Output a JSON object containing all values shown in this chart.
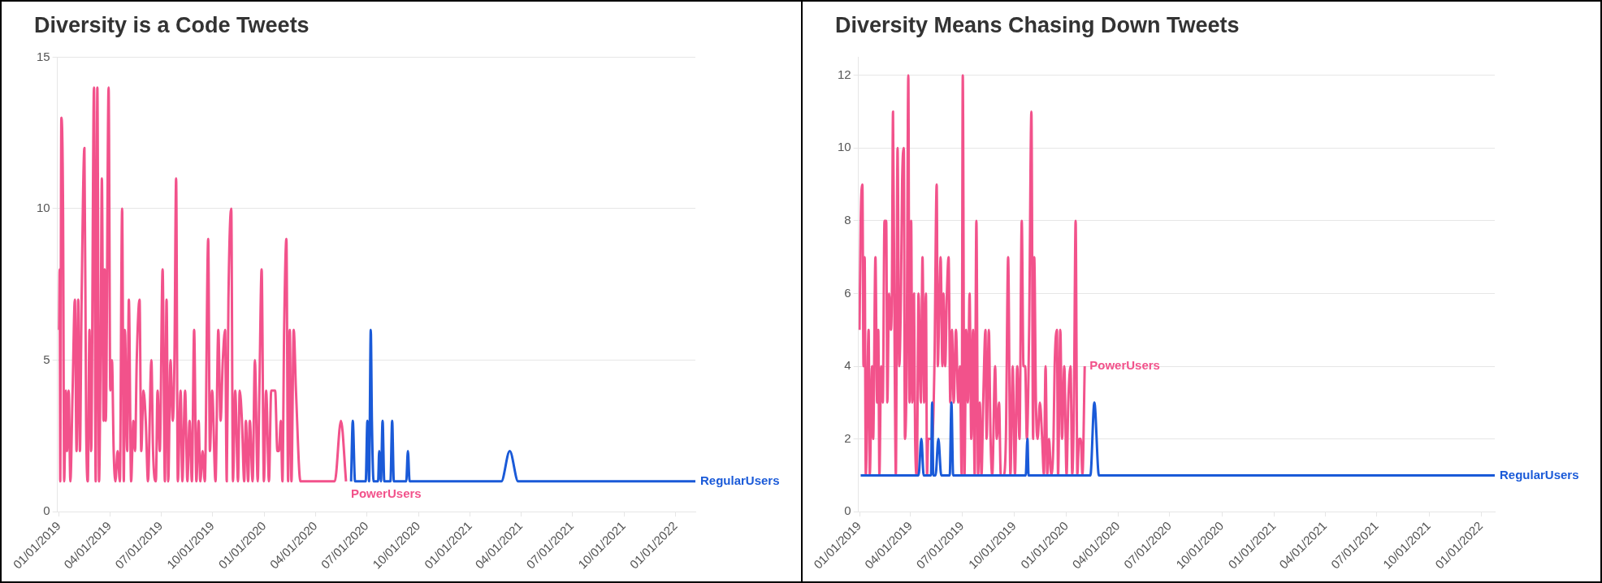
{
  "chart_data": [
    {
      "type": "line",
      "title": "Diversity is a Code Tweets",
      "legend": false,
      "grid": "y",
      "xlim": [
        "2018-12-29",
        "2022-02-05"
      ],
      "ylim": [
        0,
        15
      ],
      "yticks": [
        0,
        5,
        10,
        15
      ],
      "xticks": [
        {
          "value": "2019-01-01",
          "label": "01/01/2019"
        },
        {
          "value": "2019-04-01",
          "label": "04/01/2019"
        },
        {
          "value": "2019-07-01",
          "label": "07/01/2019"
        },
        {
          "value": "2019-10-01",
          "label": "10/01/2019"
        },
        {
          "value": "2020-01-01",
          "label": "01/01/2020"
        },
        {
          "value": "2020-04-01",
          "label": "04/01/2020"
        },
        {
          "value": "2020-07-01",
          "label": "07/01/2020"
        },
        {
          "value": "2020-10-01",
          "label": "10/01/2020"
        },
        {
          "value": "2021-01-01",
          "label": "01/01/2021"
        },
        {
          "value": "2021-04-01",
          "label": "04/01/2021"
        },
        {
          "value": "2021-07-01",
          "label": "07/01/2021"
        },
        {
          "value": "2021-10-01",
          "label": "10/01/2021"
        },
        {
          "value": "2022-01-01",
          "label": "01/01/2022"
        }
      ],
      "series": [
        {
          "name": "PowerUsers",
          "color": "#f2528b",
          "x": [
            "2019-01-01",
            "2019-01-02",
            "2019-01-03",
            "2019-01-05",
            "2019-01-08",
            "2019-01-10",
            "2019-01-13",
            "2019-01-15",
            "2019-01-18",
            "2019-01-21",
            "2019-01-25",
            "2019-01-29",
            "2019-02-01",
            "2019-02-04",
            "2019-02-07",
            "2019-02-10",
            "2019-02-15",
            "2019-02-18",
            "2019-02-21",
            "2019-02-24",
            "2019-02-27",
            "2019-03-04",
            "2019-03-07",
            "2019-03-10",
            "2019-03-13",
            "2019-03-16",
            "2019-03-18",
            "2019-03-21",
            "2019-03-23",
            "2019-03-25",
            "2019-03-30",
            "2019-04-02",
            "2019-04-05",
            "2019-04-08",
            "2019-04-11",
            "2019-04-15",
            "2019-04-19",
            "2019-04-23",
            "2019-04-26",
            "2019-04-28",
            "2019-05-02",
            "2019-05-05",
            "2019-05-09",
            "2019-05-13",
            "2019-05-16",
            "2019-05-19",
            "2019-05-24",
            "2019-05-27",
            "2019-05-31",
            "2019-06-04",
            "2019-06-08",
            "2019-06-14",
            "2019-06-17",
            "2019-06-22",
            "2019-06-25",
            "2019-06-29",
            "2019-07-04",
            "2019-07-08",
            "2019-07-11",
            "2019-07-14",
            "2019-07-18",
            "2019-07-22",
            "2019-07-25",
            "2019-07-28",
            "2019-07-31",
            "2019-08-05",
            "2019-08-08",
            "2019-08-13",
            "2019-08-17",
            "2019-08-21",
            "2019-08-25",
            "2019-08-29",
            "2019-09-02",
            "2019-09-06",
            "2019-09-09",
            "2019-09-13",
            "2019-09-17",
            "2019-09-23",
            "2019-09-26",
            "2019-09-30",
            "2019-10-06",
            "2019-10-11",
            "2019-10-15",
            "2019-10-19",
            "2019-10-23",
            "2019-10-26",
            "2019-10-29",
            "2019-11-03",
            "2019-11-06",
            "2019-11-10",
            "2019-11-15",
            "2019-11-18",
            "2019-11-22",
            "2019-11-26",
            "2019-11-29",
            "2019-12-03",
            "2019-12-06",
            "2019-12-11",
            "2019-12-15",
            "2019-12-20",
            "2019-12-23",
            "2019-12-27",
            "2019-12-31",
            "2020-01-04",
            "2020-01-09",
            "2020-01-13",
            "2020-01-20",
            "2020-01-24",
            "2020-01-27",
            "2020-01-30",
            "2020-02-02",
            "2020-02-05",
            "2020-02-09",
            "2020-02-12",
            "2020-02-15",
            "2020-02-18",
            "2020-02-22",
            "2020-02-26",
            "2020-03-05",
            "2020-05-05",
            "2020-05-16",
            "2020-05-25"
          ],
          "values": [
            6,
            8,
            1,
            13,
            10,
            1,
            4,
            2,
            4,
            1,
            4,
            7,
            2,
            7,
            2,
            7,
            12,
            3,
            1,
            6,
            2,
            14,
            1,
            14,
            1,
            6,
            11,
            3,
            8,
            3,
            14,
            4,
            5,
            2,
            1,
            2,
            1,
            10,
            1,
            6,
            2,
            7,
            1,
            3,
            2,
            5,
            7,
            2,
            4,
            3,
            1,
            5,
            2,
            1,
            4,
            2,
            8,
            1,
            7,
            1,
            5,
            3,
            5,
            11,
            1,
            4,
            1,
            4,
            1,
            3,
            1,
            6,
            1,
            3,
            1,
            2,
            1,
            9,
            2,
            4,
            1,
            6,
            3,
            5,
            6,
            1,
            7,
            10,
            1,
            4,
            1,
            4,
            3,
            1,
            3,
            1,
            3,
            1,
            5,
            1,
            4,
            8,
            1,
            4,
            1,
            4,
            4,
            2,
            2,
            3,
            1,
            6,
            9,
            1,
            6,
            1,
            6,
            4,
            1,
            1,
            3,
            1
          ]
        },
        {
          "name": "RegularUsers",
          "color": "#1a5ad8",
          "x": [
            "2020-06-03",
            "2020-06-06",
            "2020-06-10",
            "2020-06-29",
            "2020-07-02",
            "2020-07-05",
            "2020-07-08",
            "2020-07-10",
            "2020-07-13",
            "2020-07-21",
            "2020-07-23",
            "2020-07-26",
            "2020-07-29",
            "2020-08-01",
            "2020-08-12",
            "2020-08-15",
            "2020-08-18",
            "2020-09-09",
            "2020-09-12",
            "2020-09-15",
            "2021-02-25",
            "2021-03-12",
            "2021-03-27",
            "2022-02-05"
          ],
          "values": [
            1,
            3,
            1,
            1,
            3,
            1,
            6,
            3,
            1,
            1,
            2,
            1,
            3,
            1,
            1,
            3,
            1,
            1,
            2,
            1,
            1,
            2,
            1,
            1
          ]
        }
      ]
    },
    {
      "type": "line",
      "title": "Diversity Means Chasing Down Tweets",
      "legend": false,
      "grid": "y",
      "xlim": [
        "2018-12-30",
        "2022-01-25"
      ],
      "ylim": [
        0,
        12.5
      ],
      "yticks": [
        0,
        2,
        4,
        6,
        8,
        10,
        12
      ],
      "xticks": [
        {
          "value": "2019-01-01",
          "label": "01/01/2019"
        },
        {
          "value": "2019-04-01",
          "label": "04/01/2019"
        },
        {
          "value": "2019-07-01",
          "label": "07/01/2019"
        },
        {
          "value": "2019-10-01",
          "label": "10/01/2019"
        },
        {
          "value": "2020-01-01",
          "label": "01/01/2020"
        },
        {
          "value": "2020-04-01",
          "label": "04/01/2020"
        },
        {
          "value": "2020-07-01",
          "label": "07/01/2020"
        },
        {
          "value": "2020-10-01",
          "label": "10/01/2020"
        },
        {
          "value": "2021-01-01",
          "label": "01/01/2021"
        },
        {
          "value": "2021-04-01",
          "label": "04/01/2021"
        },
        {
          "value": "2021-07-01",
          "label": "07/01/2021"
        },
        {
          "value": "2021-10-01",
          "label": "10/01/2021"
        },
        {
          "value": "2022-01-01",
          "label": "01/01/2022"
        }
      ],
      "series": [
        {
          "name": "RegularUsers",
          "color": "#1a5ad8",
          "x": [
            "2019-01-03",
            "2019-04-15",
            "2019-04-20",
            "2019-04-24",
            "2019-05-07",
            "2019-05-09",
            "2019-05-11",
            "2019-05-15",
            "2019-05-20",
            "2019-05-25",
            "2019-06-09",
            "2019-06-12",
            "2019-06-15",
            "2019-10-21",
            "2019-10-24",
            "2019-10-26",
            "2020-02-12",
            "2020-02-19",
            "2020-02-27",
            "2022-01-25"
          ],
          "values": [
            1,
            1,
            2,
            1,
            1,
            3,
            1,
            1,
            2,
            1,
            1,
            3,
            1,
            1,
            2,
            1,
            1,
            3,
            1,
            1
          ]
        },
        {
          "name": "PowerUsers",
          "color": "#f2528b",
          "x": [
            "2019-01-01",
            "2019-01-03",
            "2019-01-06",
            "2019-01-08",
            "2019-01-10",
            "2019-01-12",
            "2019-01-17",
            "2019-01-19",
            "2019-01-23",
            "2019-01-25",
            "2019-01-29",
            "2019-02-01",
            "2019-02-03",
            "2019-02-05",
            "2019-02-08",
            "2019-02-11",
            "2019-02-14",
            "2019-02-17",
            "2019-02-19",
            "2019-02-22",
            "2019-02-25",
            "2019-02-27",
            "2019-03-01",
            "2019-03-04",
            "2019-03-06",
            "2019-03-09",
            "2019-03-12",
            "2019-03-15",
            "2019-03-17",
            "2019-03-20",
            "2019-03-22",
            "2019-03-25",
            "2019-03-28",
            "2019-03-30",
            "2019-04-02",
            "2019-04-04",
            "2019-04-07",
            "2019-04-09",
            "2019-04-12",
            "2019-04-15",
            "2019-04-19",
            "2019-04-22",
            "2019-04-25",
            "2019-04-28",
            "2019-04-30",
            "2019-05-02",
            "2019-05-09",
            "2019-05-13",
            "2019-05-17",
            "2019-05-19",
            "2019-05-22",
            "2019-05-24",
            "2019-05-27",
            "2019-05-29",
            "2019-06-01",
            "2019-06-04",
            "2019-06-07",
            "2019-06-10",
            "2019-06-13",
            "2019-06-16",
            "2019-06-20",
            "2019-06-24",
            "2019-06-27",
            "2019-06-30",
            "2019-07-02",
            "2019-07-05",
            "2019-07-08",
            "2019-07-11",
            "2019-07-14",
            "2019-07-17",
            "2019-07-20",
            "2019-07-23",
            "2019-07-26",
            "2019-07-29",
            "2019-08-01",
            "2019-08-04",
            "2019-08-07",
            "2019-08-11",
            "2019-08-13",
            "2019-08-17",
            "2019-08-20",
            "2019-08-23",
            "2019-08-28",
            "2019-08-31",
            "2019-09-04",
            "2019-09-07",
            "2019-09-12",
            "2019-09-16",
            "2019-09-20",
            "2019-09-24",
            "2019-09-28",
            "2019-10-02",
            "2019-10-06",
            "2019-10-10",
            "2019-10-14",
            "2019-10-17",
            "2019-10-20",
            "2019-10-23",
            "2019-10-27",
            "2019-10-31",
            "2019-11-03",
            "2019-11-05",
            "2019-11-08",
            "2019-11-11",
            "2019-11-15",
            "2019-11-19",
            "2019-11-22",
            "2019-11-25",
            "2019-11-28",
            "2019-12-01",
            "2019-12-05",
            "2019-12-09",
            "2019-12-11",
            "2019-12-15",
            "2019-12-17",
            "2019-12-21",
            "2019-12-24",
            "2019-12-28",
            "2020-01-01",
            "2020-01-04",
            "2020-01-08",
            "2020-01-11",
            "2020-01-14",
            "2020-01-17",
            "2020-01-20",
            "2020-01-23",
            "2020-01-26",
            "2020-01-29",
            "2020-02-02"
          ],
          "values": [
            5,
            8,
            9,
            4,
            7,
            1,
            5,
            1,
            4,
            2,
            7,
            3,
            5,
            1,
            4,
            3,
            8,
            8,
            3,
            6,
            5,
            6,
            11,
            4,
            1,
            10,
            4,
            6,
            9,
            10,
            2,
            4,
            12,
            3,
            8,
            3,
            6,
            2,
            1,
            6,
            3,
            7,
            3,
            6,
            1,
            2,
            2,
            4,
            9,
            4,
            6,
            7,
            4,
            6,
            4,
            6,
            7,
            3,
            5,
            3,
            5,
            3,
            4,
            1,
            12,
            1,
            5,
            3,
            6,
            2,
            5,
            1,
            8,
            1,
            3,
            1,
            3,
            5,
            2,
            5,
            2,
            1,
            4,
            2,
            3,
            1,
            1,
            2,
            7,
            1,
            4,
            1,
            4,
            2,
            8,
            4,
            4,
            2,
            5,
            11,
            2,
            7,
            3,
            2,
            3,
            2,
            1,
            4,
            1,
            2,
            1,
            2,
            4,
            5,
            1,
            5,
            2,
            4,
            1,
            3,
            4,
            1,
            3,
            8,
            1,
            2,
            2,
            1,
            4
          ]
        }
      ]
    }
  ]
}
